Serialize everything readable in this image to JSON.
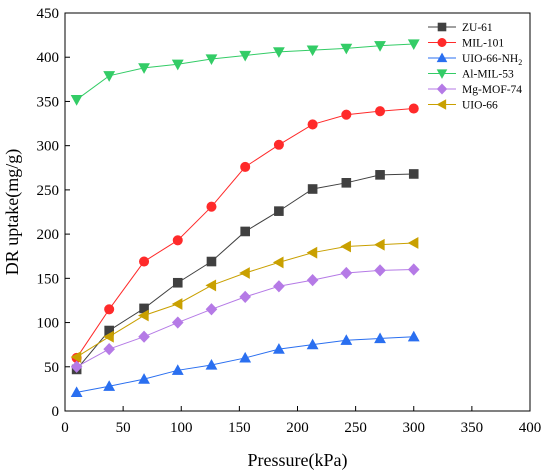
{
  "chart_data": {
    "type": "line",
    "title": "",
    "xlabel": "Pressure(kPa)",
    "ylabel": "DR uptake(mg/g)",
    "xlim": [
      0,
      400
    ],
    "ylim": [
      0,
      450
    ],
    "x_ticks": [
      0,
      50,
      100,
      150,
      200,
      250,
      300,
      350,
      400
    ],
    "y_ticks": [
      0,
      50,
      100,
      150,
      200,
      250,
      300,
      350,
      400,
      450
    ],
    "grid": false,
    "legend_position": "top-right",
    "series": [
      {
        "name": "ZU-61",
        "color": "#404040",
        "marker": "square",
        "x": [
          10,
          38,
          68,
          97,
          126,
          155,
          184,
          213,
          242,
          271,
          300
        ],
        "y": [
          47,
          91,
          116,
          145,
          169,
          203,
          226,
          251,
          258,
          267,
          268
        ]
      },
      {
        "name": "MIL-101",
        "color": "#ff2a2a",
        "marker": "circle",
        "x": [
          10,
          38,
          68,
          97,
          126,
          155,
          184,
          213,
          242,
          271,
          300
        ],
        "y": [
          60,
          115,
          169,
          193,
          231,
          276,
          301,
          324,
          335,
          339,
          342
        ]
      },
      {
        "name": "UIO-66-NH2",
        "name_base": "UIO-66-NH",
        "name_sub": "2",
        "color": "#2a6ff0",
        "marker": "triangle-up",
        "x": [
          10,
          38,
          68,
          97,
          126,
          155,
          184,
          213,
          242,
          271,
          300
        ],
        "y": [
          21,
          28,
          36,
          46,
          52,
          60,
          70,
          75,
          80,
          82,
          84
        ]
      },
      {
        "name": "Al-MIL-53",
        "color": "#33cc66",
        "marker": "triangle-down",
        "x": [
          10,
          38,
          68,
          97,
          126,
          155,
          184,
          213,
          242,
          271,
          300
        ],
        "y": [
          352,
          379,
          388,
          392,
          398,
          402,
          406,
          408,
          410,
          413,
          415
        ]
      },
      {
        "name": "Mg-MOF-74",
        "color": "#b57ae6",
        "marker": "diamond",
        "x": [
          10,
          38,
          68,
          97,
          126,
          155,
          184,
          213,
          242,
          271,
          300
        ],
        "y": [
          50,
          70,
          84,
          100,
          115,
          129,
          141,
          148,
          156,
          159,
          160
        ]
      },
      {
        "name": "UIO-66",
        "color": "#c9a000",
        "marker": "triangle-left",
        "x": [
          10,
          38,
          68,
          97,
          126,
          155,
          184,
          213,
          242,
          271,
          300
        ],
        "y": [
          61,
          84,
          108,
          121,
          142,
          156,
          168,
          179,
          186,
          188,
          190
        ]
      }
    ]
  }
}
